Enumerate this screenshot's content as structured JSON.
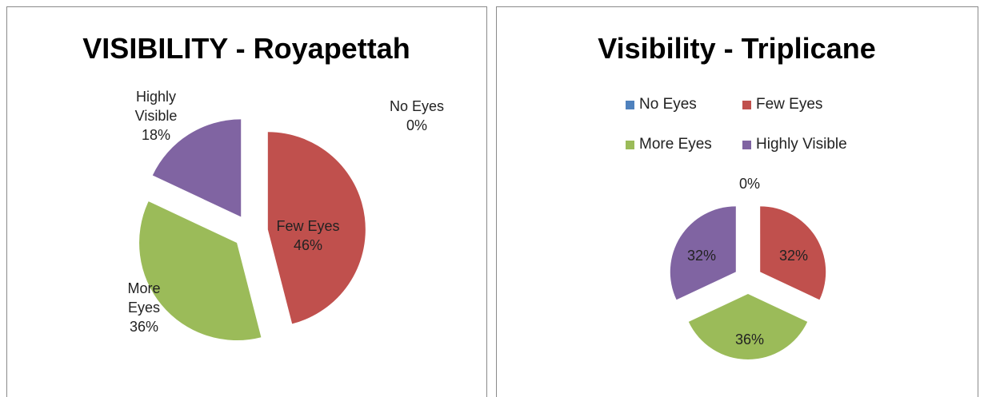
{
  "chart_data": [
    {
      "type": "pie",
      "title": "VISIBILITY - Royapettah",
      "categories": [
        "No Eyes",
        "Few Eyes",
        "More Eyes",
        "Highly Visible"
      ],
      "values": [
        0,
        46,
        36,
        18
      ],
      "value_labels": [
        "0%",
        "46%",
        "36%",
        "18%"
      ],
      "colors": [
        "#4f81bd",
        "#c0504d",
        "#9bbb59",
        "#8064a2"
      ],
      "legend": false
    },
    {
      "type": "pie",
      "title": "Visibility - Triplicane",
      "categories": [
        "No Eyes",
        "Few Eyes",
        "More Eyes",
        "Highly Visible"
      ],
      "values": [
        0,
        32,
        36,
        32
      ],
      "value_labels": [
        "0%",
        "32%",
        "36%",
        "32%"
      ],
      "colors": [
        "#4f81bd",
        "#c0504d",
        "#9bbb59",
        "#8064a2"
      ],
      "legend": true
    }
  ]
}
